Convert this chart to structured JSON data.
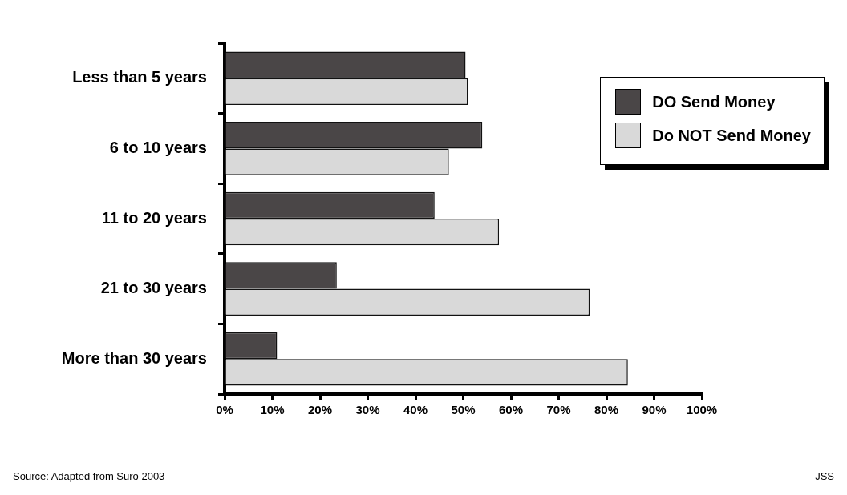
{
  "chart_data": {
    "type": "bar",
    "orientation": "horizontal",
    "categories": [
      "Less than 5 years",
      "6 to 10 years",
      "11 to 20 years",
      "21 to 30 years",
      "More than 30 years"
    ],
    "series": [
      {
        "name": "DO Send Money",
        "color": "#4a4647",
        "values": [
          50.5,
          54,
          44,
          23.5,
          11
        ]
      },
      {
        "name": "Do NOT Send Money",
        "color": "#d9d9d9",
        "values": [
          51,
          47,
          57.5,
          76.5,
          84.5
        ]
      }
    ],
    "xlim": [
      0,
      100
    ],
    "xticks": [
      {
        "value": 0,
        "label": "0%"
      },
      {
        "value": 10,
        "label": "10%"
      },
      {
        "value": 20,
        "label": "20%"
      },
      {
        "value": 30,
        "label": "30%"
      },
      {
        "value": 40,
        "label": "40%"
      },
      {
        "value": 50,
        "label": "50%"
      },
      {
        "value": 60,
        "label": "60%"
      },
      {
        "value": 70,
        "label": "70%"
      },
      {
        "value": 80,
        "label": "80%"
      },
      {
        "value": 90,
        "label": "90%"
      },
      {
        "value": 100,
        "label": "100%"
      }
    ],
    "grid": false,
    "legend": "top right",
    "annotations": [
      "Source: Adapted from Suro 2003",
      "JSS"
    ]
  }
}
